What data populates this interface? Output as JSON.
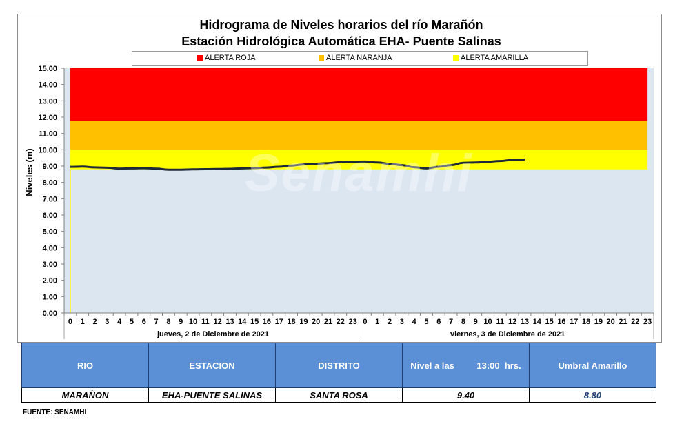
{
  "chart_data": {
    "type": "line",
    "title": "Hidrograma de Niveles horarios del río Marañón",
    "subtitle": "Estación Hidrológica Automática EHA- Puente Salinas",
    "ylabel": "Niveles  (m)",
    "ylim": [
      0,
      15
    ],
    "y_ticks": [
      "0.00",
      "1.00",
      "2.00",
      "3.00",
      "4.00",
      "5.00",
      "6.00",
      "7.00",
      "8.00",
      "9.00",
      "10.00",
      "11.00",
      "12.00",
      "13.00",
      "14.00",
      "15.00"
    ],
    "x_ticks": [
      "0",
      "1",
      "2",
      "3",
      "4",
      "5",
      "6",
      "7",
      "8",
      "9",
      "10",
      "11",
      "12",
      "13",
      "14",
      "15",
      "16",
      "17",
      "18",
      "19",
      "20",
      "21",
      "22",
      "23",
      "0",
      "1",
      "2",
      "3",
      "4",
      "5",
      "6",
      "7",
      "8",
      "9",
      "10",
      "11",
      "12",
      "13",
      "14",
      "15",
      "16",
      "17",
      "18",
      "19",
      "20",
      "21",
      "22",
      "23"
    ],
    "day_labels": [
      "jueves, 2 de Diciembre de 2021",
      "viernes, 3 de Diciembre de 2021"
    ],
    "bands": [
      {
        "name": "ALERTA ROJA",
        "from": 11.75,
        "to": 15.0,
        "color": "#ff0000"
      },
      {
        "name": "ALERTA NARANJA",
        "from": 10.0,
        "to": 11.75,
        "color": "#ffc000"
      },
      {
        "name": "ALERTA AMARILLA",
        "from": 8.8,
        "to": 10.0,
        "color": "#ffff00"
      }
    ],
    "series": [
      {
        "color": "#1f2a38",
        "values": [
          8.95,
          8.97,
          8.92,
          8.9,
          8.84,
          8.86,
          8.87,
          8.84,
          8.78,
          8.78,
          8.8,
          8.81,
          8.82,
          8.83,
          8.86,
          8.88,
          8.91,
          8.96,
          9.03,
          9.1,
          9.15,
          9.18,
          9.24,
          9.27,
          9.28,
          9.22,
          9.14,
          9.06,
          8.93,
          8.86,
          8.96,
          9.06,
          9.2,
          9.22,
          9.27,
          9.31,
          9.38,
          9.4
        ]
      }
    ],
    "background_color": "#dce6f1"
  },
  "legend": {
    "red": "ALERTA ROJA",
    "orange": "ALERTA NARANJA",
    "yellow": "ALERTA AMARILLA"
  },
  "table": {
    "headers": {
      "rio": "RIO",
      "estacion": "ESTACION",
      "distrito": "DISTRITO",
      "nivel": "Nivel a las         13:00  hrs.",
      "umbral": "Umbral Amarillo"
    },
    "row": {
      "rio": "MARAÑON",
      "estacion": "EHA-PUENTE SALINAS",
      "distrito": "SANTA ROSA",
      "nivel": "9.40",
      "umbral": "8.80"
    }
  },
  "source": "FUENTE:  SENAMHI",
  "watermark": "Senamhi"
}
